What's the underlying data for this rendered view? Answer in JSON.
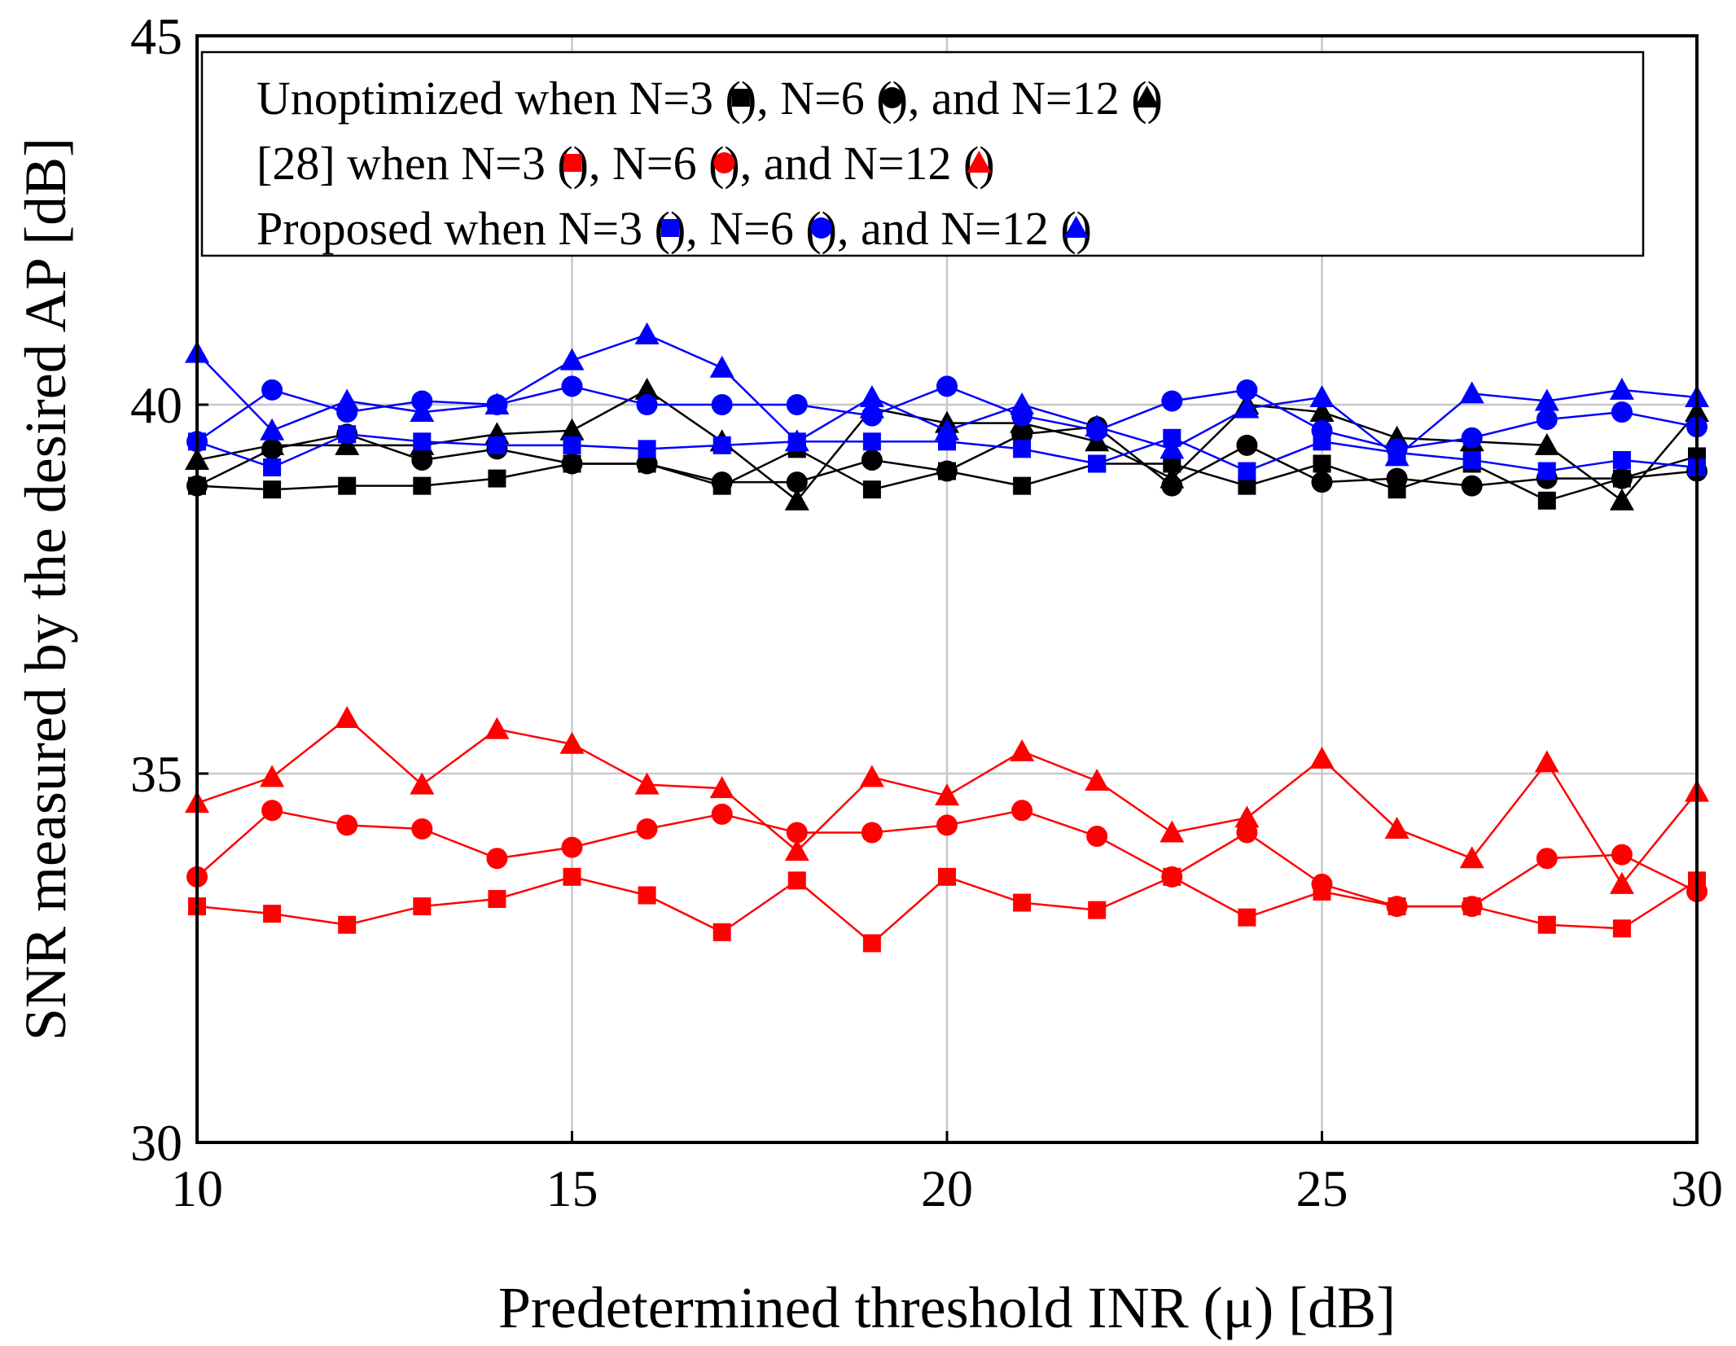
{
  "chart_data": {
    "type": "line",
    "title": "",
    "xlabel": "Predetermined threshold INR (μ) [dB]",
    "ylabel": "SNR measured by the desired AP [dB]",
    "xlim": [
      10,
      30
    ],
    "ylim": [
      30,
      45
    ],
    "xticks": [
      10,
      15,
      20,
      25,
      30
    ],
    "yticks": [
      30,
      35,
      40,
      45
    ],
    "xtick_labels": [
      "10",
      "15",
      "20",
      "25",
      "30"
    ],
    "ytick_labels": [
      "30",
      "35",
      "40",
      "45"
    ],
    "grid": true,
    "legend_position": "top",
    "x": [
      10,
      11,
      12,
      13,
      14,
      15,
      16,
      17,
      18,
      19,
      20,
      21,
      22,
      23,
      24,
      25,
      26,
      27,
      28,
      29,
      30
    ],
    "series": [
      {
        "name": "Unoptimized N=3",
        "color": "#000000",
        "marker": "square",
        "values": [
          38.9,
          38.85,
          38.9,
          38.9,
          39.0,
          39.2,
          39.2,
          38.9,
          39.4,
          38.85,
          39.1,
          38.9,
          39.2,
          39.2,
          38.9,
          39.2,
          38.85,
          39.2,
          38.7,
          39.0,
          39.3
        ]
      },
      {
        "name": "Unoptimized N=6",
        "color": "#000000",
        "marker": "circle",
        "values": [
          38.9,
          39.4,
          39.6,
          39.25,
          39.4,
          39.2,
          39.2,
          38.95,
          38.95,
          39.25,
          39.1,
          39.6,
          39.7,
          38.9,
          39.45,
          38.95,
          39.0,
          38.9,
          39.0,
          39.0,
          39.1
        ]
      },
      {
        "name": "Unoptimized N=12",
        "color": "#000000",
        "marker": "triangle",
        "values": [
          39.25,
          39.45,
          39.45,
          39.45,
          39.6,
          39.65,
          40.2,
          39.5,
          38.7,
          39.95,
          39.75,
          39.75,
          39.5,
          39.0,
          40.0,
          39.9,
          39.55,
          39.5,
          39.45,
          38.7,
          39.9
        ]
      },
      {
        "name": "[28] N=3",
        "color": "#ff0000",
        "marker": "square",
        "values": [
          33.2,
          33.1,
          32.95,
          33.2,
          33.3,
          33.6,
          33.35,
          32.85,
          33.55,
          32.7,
          33.6,
          33.25,
          33.15,
          33.6,
          33.05,
          33.4,
          33.2,
          33.2,
          32.95,
          32.9,
          33.55
        ]
      },
      {
        "name": "[28] N=6",
        "color": "#ff0000",
        "marker": "circle",
        "values": [
          33.6,
          34.5,
          34.3,
          34.25,
          33.85,
          34.0,
          34.25,
          34.45,
          34.2,
          34.2,
          34.3,
          34.5,
          34.15,
          33.6,
          34.2,
          33.5,
          33.2,
          33.2,
          33.85,
          33.9,
          33.4
        ]
      },
      {
        "name": "[28] N=12",
        "color": "#ff0000",
        "marker": "triangle",
        "values": [
          34.6,
          34.95,
          35.75,
          34.85,
          35.6,
          35.4,
          34.85,
          34.8,
          33.95,
          34.95,
          34.7,
          35.3,
          34.9,
          34.2,
          34.4,
          35.2,
          34.25,
          33.85,
          35.15,
          33.5,
          34.75
        ]
      },
      {
        "name": "Proposed N=3",
        "color": "#0000ff",
        "marker": "square",
        "values": [
          39.5,
          39.15,
          39.6,
          39.5,
          39.45,
          39.45,
          39.4,
          39.45,
          39.5,
          39.5,
          39.5,
          39.4,
          39.2,
          39.55,
          39.1,
          39.5,
          39.35,
          39.25,
          39.1,
          39.25,
          39.15
        ]
      },
      {
        "name": "Proposed N=6",
        "color": "#0000ff",
        "marker": "circle",
        "values": [
          39.5,
          40.2,
          39.9,
          40.05,
          40.0,
          40.25,
          40.0,
          40.0,
          40.0,
          39.85,
          40.25,
          39.85,
          39.65,
          40.05,
          40.2,
          39.65,
          39.4,
          39.55,
          39.8,
          39.9,
          39.7
        ]
      },
      {
        "name": "Proposed N=12",
        "color": "#0000ff",
        "marker": "triangle",
        "values": [
          40.7,
          39.65,
          40.05,
          39.9,
          40.0,
          40.6,
          40.95,
          40.5,
          39.5,
          40.1,
          39.65,
          40.0,
          39.7,
          39.4,
          39.95,
          40.1,
          39.3,
          40.15,
          40.05,
          40.2,
          40.1
        ]
      }
    ],
    "legend": [
      {
        "prefix": "Unoptimized when N=3 (",
        "color": "#000000",
        "items": [
          {
            "marker": "square",
            "after": "), N=6 ("
          },
          {
            "marker": "circle",
            "after": "), and N=12 ("
          },
          {
            "marker": "triangle",
            "after": ")"
          }
        ]
      },
      {
        "prefix": "[28] when N=3 (",
        "color": "#ff0000",
        "items": [
          {
            "marker": "square",
            "after": "), N=6 ("
          },
          {
            "marker": "circle",
            "after": "), and N=12 ("
          },
          {
            "marker": "triangle",
            "after": ")"
          }
        ]
      },
      {
        "prefix": "Proposed when N=3 (",
        "color": "#0000ff",
        "items": [
          {
            "marker": "square",
            "after": "),  N=6 ("
          },
          {
            "marker": "circle",
            "after": "), and N=12 ("
          },
          {
            "marker": "triangle",
            "after": ")"
          }
        ]
      }
    ]
  }
}
